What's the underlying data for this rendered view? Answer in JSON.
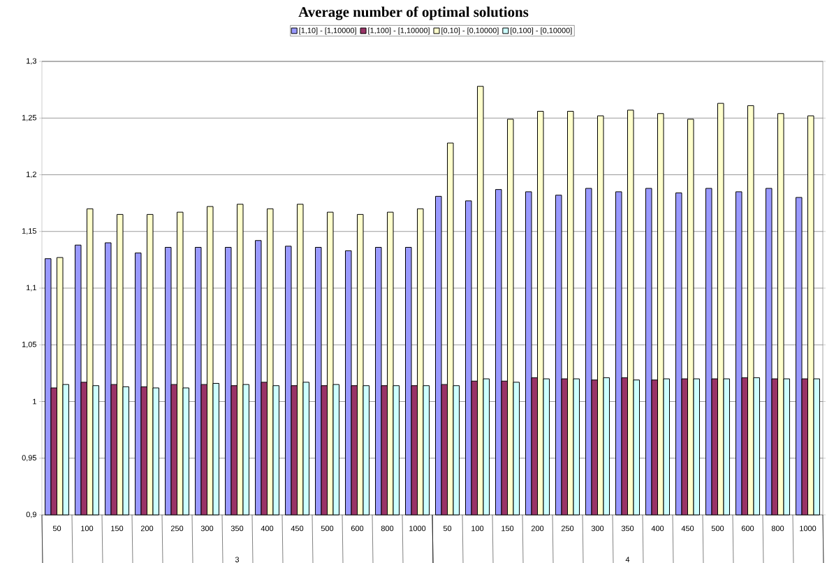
{
  "chart_data": {
    "type": "bar",
    "title": "Average number of optimal solutions",
    "categories": [
      "50",
      "100",
      "150",
      "200",
      "250",
      "300",
      "350",
      "400",
      "450",
      "500",
      "600",
      "800",
      "1000",
      "50",
      "100",
      "150",
      "200",
      "250",
      "300",
      "350",
      "400",
      "450",
      "500",
      "600",
      "800",
      "1000"
    ],
    "series": [
      {
        "name": "[1,10] - [1,10000]",
        "color": "#9999ff",
        "values": [
          1.126,
          1.138,
          1.14,
          1.131,
          1.136,
          1.136,
          1.136,
          1.142,
          1.137,
          1.136,
          1.133,
          1.136,
          1.136,
          1.181,
          1.177,
          1.187,
          1.185,
          1.182,
          1.188,
          1.185,
          1.188,
          1.184,
          1.188,
          1.185,
          1.188,
          1.18
        ]
      },
      {
        "name": "[1,100] - [1,10000]",
        "color": "#993366",
        "values": [
          1.012,
          1.017,
          1.015,
          1.013,
          1.015,
          1.015,
          1.014,
          1.017,
          1.014,
          1.014,
          1.014,
          1.014,
          1.014,
          1.015,
          1.018,
          1.018,
          1.021,
          1.02,
          1.019,
          1.021,
          1.019,
          1.02,
          1.02,
          1.021,
          1.02,
          1.02
        ]
      },
      {
        "name": "[0,10] - [0,10000]",
        "color": "#ffffcc",
        "values": [
          1.127,
          1.17,
          1.165,
          1.165,
          1.167,
          1.172,
          1.174,
          1.17,
          1.174,
          1.167,
          1.165,
          1.167,
          1.17,
          1.228,
          1.278,
          1.249,
          1.256,
          1.256,
          1.252,
          1.257,
          1.254,
          1.249,
          1.263,
          1.261,
          1.254,
          1.252
        ]
      },
      {
        "name": "[0,100] - [0,10000]",
        "color": "#ccffff",
        "values": [
          1.015,
          1.014,
          1.013,
          1.012,
          1.012,
          1.016,
          1.015,
          1.014,
          1.017,
          1.015,
          1.014,
          1.014,
          1.014,
          1.014,
          1.02,
          1.017,
          1.02,
          1.02,
          1.021,
          1.019,
          1.02,
          1.02,
          1.02,
          1.021,
          1.02,
          1.02
        ]
      }
    ],
    "ylim": [
      0.9,
      1.3
    ],
    "yticks": [
      {
        "value": 0.9,
        "label": "0,9"
      },
      {
        "value": 0.95,
        "label": "0,95"
      },
      {
        "value": 1,
        "label": "1"
      },
      {
        "value": 1.05,
        "label": "1,05"
      },
      {
        "value": 1.1,
        "label": "1,1"
      },
      {
        "value": 1.15,
        "label": "1,15"
      },
      {
        "value": 1.2,
        "label": "1,2"
      },
      {
        "value": 1.25,
        "label": "1,25"
      },
      {
        "value": 1.3,
        "label": "1,3"
      }
    ],
    "grid": "y",
    "legend": "top",
    "annotations": [
      "3",
      "4"
    ]
  }
}
